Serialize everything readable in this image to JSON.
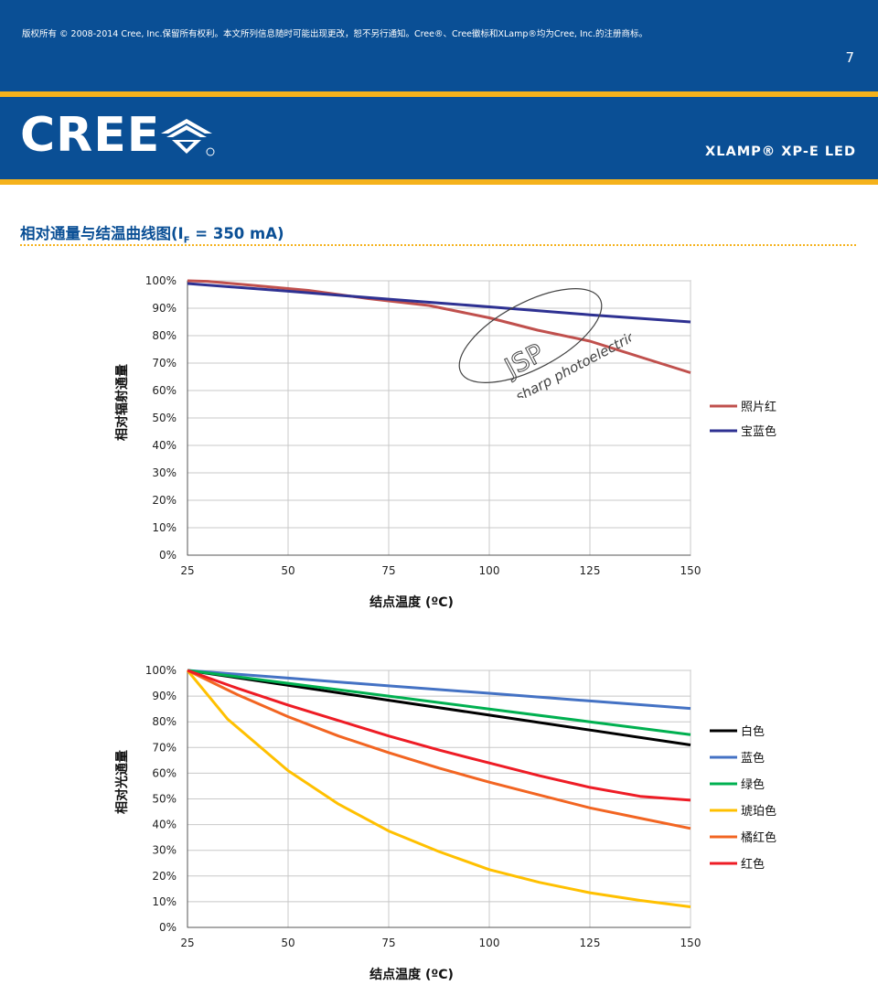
{
  "header": {
    "copyright": "版权所有 © 2008-2014 Cree, Inc.保留所有权利。本文所列信息随时可能出现更改，恕不另行通知。Cree®、Cree徽标和XLamp®均为Cree, Inc.的注册商标。",
    "page_number": "7",
    "logo_text": "CREE",
    "product": "XLAMP® XP-E LED"
  },
  "section": {
    "title_pre": "相对通量与结温曲线图(I",
    "title_sub": "F",
    "title_post": " = 350 mA)"
  },
  "watermark": {
    "text": "Jin sharp photoelectric",
    "mark": "JSP"
  },
  "chart_data": [
    {
      "type": "line",
      "xlabel": "结点温度 (ºC)",
      "ylabel": "相对辐射通量",
      "xlim": [
        25,
        150
      ],
      "ylim": [
        0,
        100
      ],
      "xticks": [
        25,
        50,
        75,
        100,
        125,
        150
      ],
      "yticks": [
        0,
        10,
        20,
        30,
        40,
        50,
        60,
        70,
        80,
        90,
        100
      ],
      "ytick_suffix": "%",
      "grid": true,
      "legend_position": "right",
      "series": [
        {
          "name": "照片红",
          "color": "#c0504d",
          "x": [
            25,
            30,
            40,
            55,
            70,
            85,
            100,
            112,
            125,
            138,
            150
          ],
          "y": [
            100,
            99.8,
            98.5,
            96.5,
            93.5,
            91,
            86.5,
            82,
            78,
            72,
            66.5
          ]
        },
        {
          "name": "宝蓝色",
          "color": "#2e3192",
          "x": [
            25,
            50,
            75,
            100,
            125,
            150
          ],
          "y": [
            99,
            96.2,
            93.3,
            90.5,
            87.6,
            85
          ]
        }
      ]
    },
    {
      "type": "line",
      "xlabel": "结点温度 (ºC)",
      "ylabel": "相对光通量",
      "xlim": [
        25,
        150
      ],
      "ylim": [
        0,
        100
      ],
      "xticks": [
        25,
        50,
        75,
        100,
        125,
        150
      ],
      "yticks": [
        0,
        10,
        20,
        30,
        40,
        50,
        60,
        70,
        80,
        90,
        100
      ],
      "ytick_suffix": "%",
      "grid": true,
      "legend_position": "right",
      "series": [
        {
          "name": "白色",
          "color": "#000000",
          "x": [
            25,
            50,
            75,
            100,
            125,
            150
          ],
          "y": [
            100,
            94.2,
            88.4,
            82.6,
            76.8,
            71
          ]
        },
        {
          "name": "蓝色",
          "color": "#4472c4",
          "x": [
            25,
            50,
            75,
            100,
            125,
            150
          ],
          "y": [
            100,
            97,
            94,
            91.1,
            88.1,
            85.2
          ]
        },
        {
          "name": "绿色",
          "color": "#00b050",
          "x": [
            25,
            50,
            75,
            100,
            125,
            150
          ],
          "y": [
            100,
            95,
            90,
            85,
            80,
            75
          ]
        },
        {
          "name": "琥珀色",
          "color": "#ffc000",
          "x": [
            25,
            35,
            50,
            62.5,
            75,
            87.5,
            100,
            112.5,
            125,
            137.5,
            150
          ],
          "y": [
            100,
            81,
            61,
            48,
            37.5,
            29.5,
            22.5,
            17.5,
            13.5,
            10.5,
            8
          ]
        },
        {
          "name": "橘红色",
          "color": "#f26522",
          "x": [
            25,
            37.5,
            50,
            62.5,
            75,
            87.5,
            100,
            112.5,
            125,
            137.5,
            150
          ],
          "y": [
            100,
            90.5,
            82,
            74.5,
            68,
            62,
            56.5,
            51.5,
            46.5,
            42.5,
            38.5
          ]
        },
        {
          "name": "红色",
          "color": "#ee1c25",
          "x": [
            25,
            37.5,
            50,
            62.5,
            75,
            87.5,
            100,
            112.5,
            125,
            137.5,
            150
          ],
          "y": [
            100,
            93,
            86.5,
            80.5,
            74.5,
            69,
            64,
            59,
            54.5,
            51,
            49.5
          ]
        }
      ]
    }
  ]
}
